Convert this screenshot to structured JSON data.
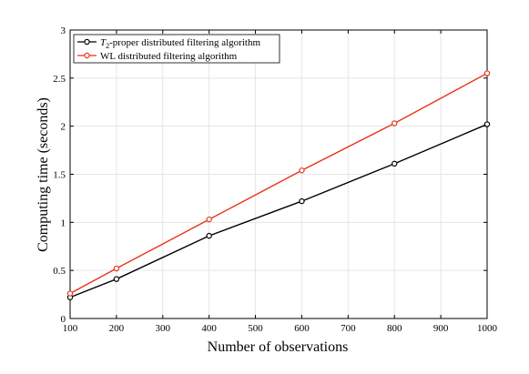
{
  "chart_data": {
    "type": "line",
    "xlabel": "Number of observations",
    "ylabel": "Computing time (seconds)",
    "xlim": [
      100,
      1000
    ],
    "ylim": [
      0,
      3
    ],
    "x_ticks": [
      100,
      200,
      300,
      400,
      500,
      600,
      700,
      800,
      900,
      1000
    ],
    "y_ticks": [
      0,
      0.5,
      1,
      1.5,
      2,
      2.5,
      3
    ],
    "x_tick_labels": [
      "100",
      "200",
      "300",
      "400",
      "500",
      "600",
      "700",
      "800",
      "900",
      "1000"
    ],
    "y_tick_labels": [
      "0",
      "0.5",
      "1",
      "1.5",
      "2",
      "2.5",
      "3"
    ],
    "grid": true,
    "legend_position": "top-left",
    "series": [
      {
        "name": "T2-proper distributed filtering algorithm",
        "legend_math": "T",
        "legend_sub": "2",
        "legend_rest": "-proper distributed filtering algorithm",
        "color": "#000000",
        "marker": "circle",
        "x": [
          100,
          200,
          400,
          600,
          800,
          1000
        ],
        "y": [
          0.22,
          0.41,
          0.86,
          1.22,
          1.61,
          2.02
        ]
      },
      {
        "name": "WL distributed filtering algorithm",
        "color": "#e8341c",
        "marker": "circle",
        "x": [
          100,
          200,
          400,
          600,
          800,
          1000
        ],
        "y": [
          0.26,
          0.52,
          1.03,
          1.54,
          2.03,
          2.55
        ]
      }
    ]
  }
}
